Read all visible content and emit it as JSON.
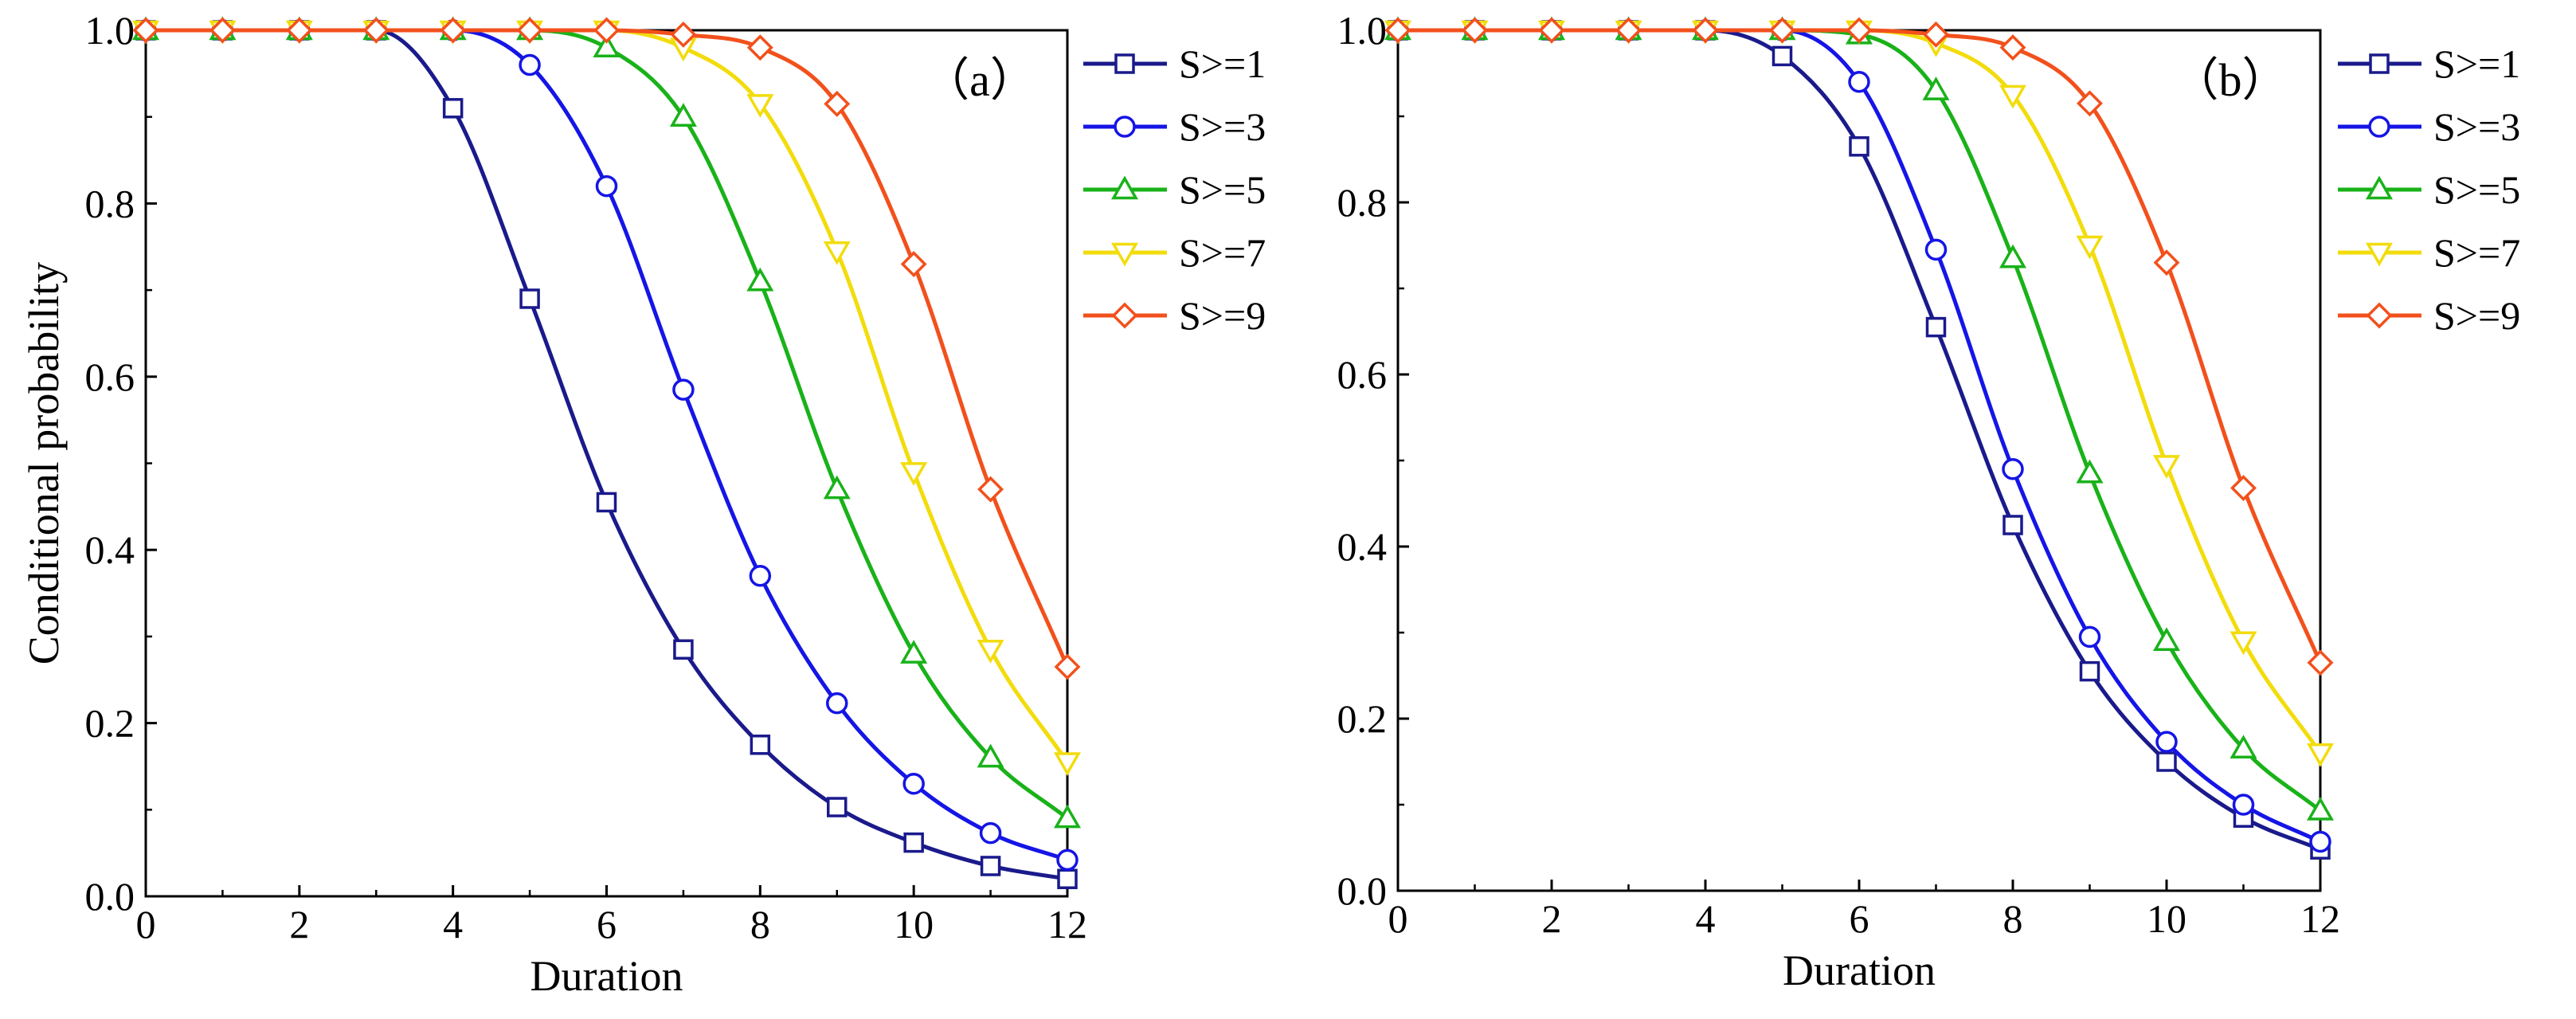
{
  "chart_data": [
    {
      "type": "line",
      "panel_label": "（a）",
      "xlabel": "Duration",
      "ylabel": "Conditional probability",
      "xlim": [
        0,
        12
      ],
      "ylim": [
        0,
        1
      ],
      "xticks": [
        "0",
        "2",
        "4",
        "6",
        "8",
        "10",
        "12"
      ],
      "yticks": [
        "0.0",
        "0.2",
        "0.4",
        "0.6",
        "0.8",
        "1.0"
      ],
      "grid": false,
      "legend_position": "outside-right",
      "x": [
        0,
        1,
        2,
        3,
        4,
        5,
        6,
        7,
        8,
        9,
        10,
        11,
        12
      ],
      "series": [
        {
          "name": "S>=1",
          "color": "#1a1a8c",
          "marker": "square",
          "values": [
            1.0,
            1.0,
            1.0,
            1.0,
            0.91,
            0.69,
            0.455,
            0.285,
            0.175,
            0.103,
            0.062,
            0.035,
            0.02
          ]
        },
        {
          "name": "S>=3",
          "color": "#1515e6",
          "marker": "circle",
          "values": [
            1.0,
            1.0,
            1.0,
            1.0,
            1.0,
            0.96,
            0.82,
            0.585,
            0.37,
            0.223,
            0.13,
            0.073,
            0.042
          ]
        },
        {
          "name": "S>=5",
          "color": "#19b219",
          "marker": "triangle-up",
          "values": [
            1.0,
            1.0,
            1.0,
            1.0,
            1.0,
            1.0,
            0.98,
            0.9,
            0.71,
            0.47,
            0.28,
            0.16,
            0.09
          ]
        },
        {
          "name": "S>=7",
          "color": "#f2dc0c",
          "marker": "triangle-down",
          "values": [
            1.0,
            1.0,
            1.0,
            1.0,
            1.0,
            1.0,
            1.0,
            0.98,
            0.915,
            0.745,
            0.49,
            0.285,
            0.155
          ]
        },
        {
          "name": "S>=9",
          "color": "#f2501c",
          "marker": "diamond",
          "values": [
            1.0,
            1.0,
            1.0,
            1.0,
            1.0,
            1.0,
            1.0,
            0.995,
            0.98,
            0.915,
            0.73,
            0.47,
            0.265
          ]
        }
      ]
    },
    {
      "type": "line",
      "panel_label": "（b）",
      "xlabel": "Duration",
      "ylabel": "",
      "xlim": [
        0,
        12
      ],
      "ylim": [
        0,
        1
      ],
      "xticks": [
        "0",
        "2",
        "4",
        "6",
        "8",
        "10",
        "12"
      ],
      "yticks": [
        "0.0",
        "0.2",
        "0.4",
        "0.6",
        "0.8",
        "1.0"
      ],
      "grid": false,
      "legend_position": "outside-right",
      "x": [
        0,
        1,
        2,
        3,
        4,
        5,
        6,
        7,
        8,
        9,
        10,
        11,
        12
      ],
      "series": [
        {
          "name": "S>=1",
          "color": "#1a1a8c",
          "marker": "square",
          "values": [
            1.0,
            1.0,
            1.0,
            1.0,
            1.0,
            0.97,
            0.865,
            0.655,
            0.425,
            0.255,
            0.15,
            0.085,
            0.048
          ]
        },
        {
          "name": "S>=3",
          "color": "#1515e6",
          "marker": "circle",
          "values": [
            1.0,
            1.0,
            1.0,
            1.0,
            1.0,
            1.0,
            0.94,
            0.745,
            0.49,
            0.295,
            0.173,
            0.1,
            0.057
          ]
        },
        {
          "name": "S>=5",
          "color": "#19b219",
          "marker": "triangle-up",
          "values": [
            1.0,
            1.0,
            1.0,
            1.0,
            1.0,
            1.0,
            0.995,
            0.93,
            0.735,
            0.485,
            0.29,
            0.165,
            0.093
          ]
        },
        {
          "name": "S>=7",
          "color": "#f2dc0c",
          "marker": "triangle-down",
          "values": [
            1.0,
            1.0,
            1.0,
            1.0,
            1.0,
            1.0,
            1.0,
            0.985,
            0.925,
            0.75,
            0.495,
            0.29,
            0.16
          ]
        },
        {
          "name": "S>=9",
          "color": "#f2501c",
          "marker": "diamond",
          "values": [
            1.0,
            1.0,
            1.0,
            1.0,
            1.0,
            1.0,
            1.0,
            0.995,
            0.98,
            0.915,
            0.73,
            0.468,
            0.265
          ]
        }
      ]
    }
  ]
}
